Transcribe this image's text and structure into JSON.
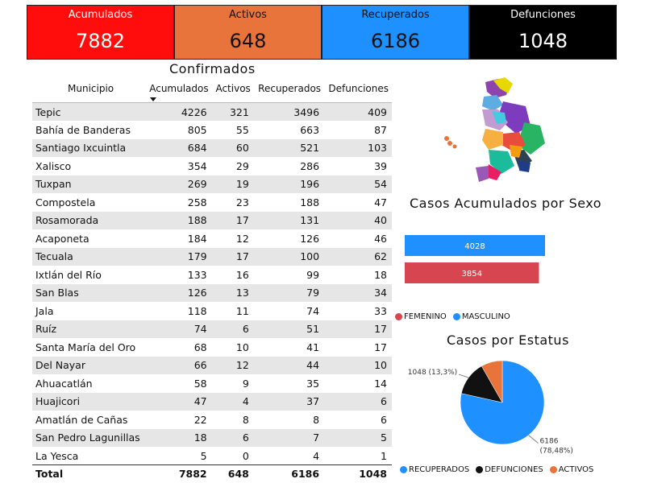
{
  "kpis": [
    {
      "label": "Acumulados",
      "value": "7882",
      "bg": "#ff0d0d",
      "fg": "#ffffff"
    },
    {
      "label": "Activos",
      "value": "648",
      "bg": "#e8743b",
      "fg": "#111111"
    },
    {
      "label": "Recuperados",
      "value": "6186",
      "bg": "#1e90ff",
      "fg": "#111111"
    },
    {
      "label": "Defunciones",
      "value": "1048",
      "bg": "#000000",
      "fg": "#ffffff"
    }
  ],
  "table": {
    "title": "Confirmados",
    "columns": [
      "Municipio",
      "Acumulados",
      "Activos",
      "Recuperados",
      "Defunciones"
    ],
    "rows": [
      [
        "Tepic",
        "4226",
        "321",
        "3496",
        "409"
      ],
      [
        "Bahía de Banderas",
        "805",
        "55",
        "663",
        "87"
      ],
      [
        "Santiago Ixcuintla",
        "684",
        "60",
        "521",
        "103"
      ],
      [
        "Xalisco",
        "354",
        "29",
        "286",
        "39"
      ],
      [
        "Tuxpan",
        "269",
        "19",
        "196",
        "54"
      ],
      [
        "Compostela",
        "258",
        "23",
        "188",
        "47"
      ],
      [
        "Rosamorada",
        "188",
        "17",
        "131",
        "40"
      ],
      [
        "Acaponeta",
        "184",
        "12",
        "126",
        "46"
      ],
      [
        "Tecuala",
        "179",
        "17",
        "100",
        "62"
      ],
      [
        "Ixtlán del Río",
        "133",
        "16",
        "99",
        "18"
      ],
      [
        "San Blas",
        "126",
        "13",
        "79",
        "34"
      ],
      [
        "Jala",
        "118",
        "11",
        "74",
        "33"
      ],
      [
        "Ruíz",
        "74",
        "6",
        "51",
        "17"
      ],
      [
        "Santa María del Oro",
        "68",
        "10",
        "41",
        "17"
      ],
      [
        "Del Nayar",
        "66",
        "12",
        "44",
        "10"
      ],
      [
        "Ahuacatlán",
        "58",
        "9",
        "35",
        "14"
      ],
      [
        "Huajicori",
        "47",
        "4",
        "37",
        "6"
      ],
      [
        "Amatlán de Cañas",
        "22",
        "8",
        "8",
        "6"
      ],
      [
        "San Pedro Lagunillas",
        "18",
        "6",
        "7",
        "5"
      ],
      [
        "La Yesca",
        "5",
        "0",
        "4",
        "1"
      ]
    ],
    "total": [
      "Total",
      "7882",
      "648",
      "6186",
      "1048"
    ]
  },
  "chart_data": [
    {
      "type": "bar",
      "orientation": "horizontal",
      "title": "Casos Acumulados por Sexo",
      "categories": [
        "MASCULINO",
        "FEMENINO"
      ],
      "values": [
        4028,
        3854
      ],
      "colors": [
        "#1e90ff",
        "#d64550"
      ],
      "legend": [
        {
          "name": "FEMENINO",
          "color": "#d64550"
        },
        {
          "name": "MASCULINO",
          "color": "#1e90ff"
        }
      ],
      "legend_position": "bottom-left"
    },
    {
      "type": "pie",
      "title": "Casos por Estatus",
      "slices": [
        {
          "name": "RECUPERADOS",
          "value": 6186,
          "label": "6186 (78,48%)",
          "color": "#1e90ff"
        },
        {
          "name": "DEFUNCIONES",
          "value": 1048,
          "label": "1048 (13,3%)",
          "color": "#111111"
        },
        {
          "name": "ACTIVOS",
          "value": 648,
          "label": "",
          "color": "#e8743b"
        }
      ],
      "legend_position": "bottom"
    }
  ]
}
